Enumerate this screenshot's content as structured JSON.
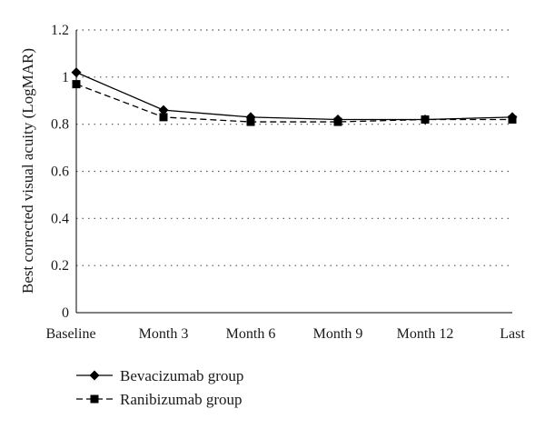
{
  "chart_data": {
    "type": "line",
    "title": "",
    "xlabel": "",
    "ylabel": "Best corrected visual acuity (LogMAR)",
    "categories": [
      "Baseline",
      "Month 3",
      "Month 6",
      "Month 9",
      "Month 12",
      "Last"
    ],
    "ylim": [
      0,
      1.2
    ],
    "yticks": [
      0,
      0.2,
      0.4,
      0.6,
      0.8,
      1,
      1.2
    ],
    "ytick_labels": [
      "0",
      "0.2",
      "0.4",
      "0.6",
      "0.8",
      "1",
      "1.2"
    ],
    "grid": "horizontal-dotted",
    "legend_position": "bottom-left",
    "series": [
      {
        "name": "Bevacizumab group",
        "values": [
          1.02,
          0.86,
          0.83,
          0.82,
          0.82,
          0.83
        ],
        "marker": "diamond",
        "line": "solid",
        "color": "#000000"
      },
      {
        "name": "Ranibizumab group",
        "values": [
          0.97,
          0.83,
          0.81,
          0.81,
          0.82,
          0.82
        ],
        "marker": "square",
        "line": "dashed",
        "color": "#000000"
      }
    ]
  }
}
